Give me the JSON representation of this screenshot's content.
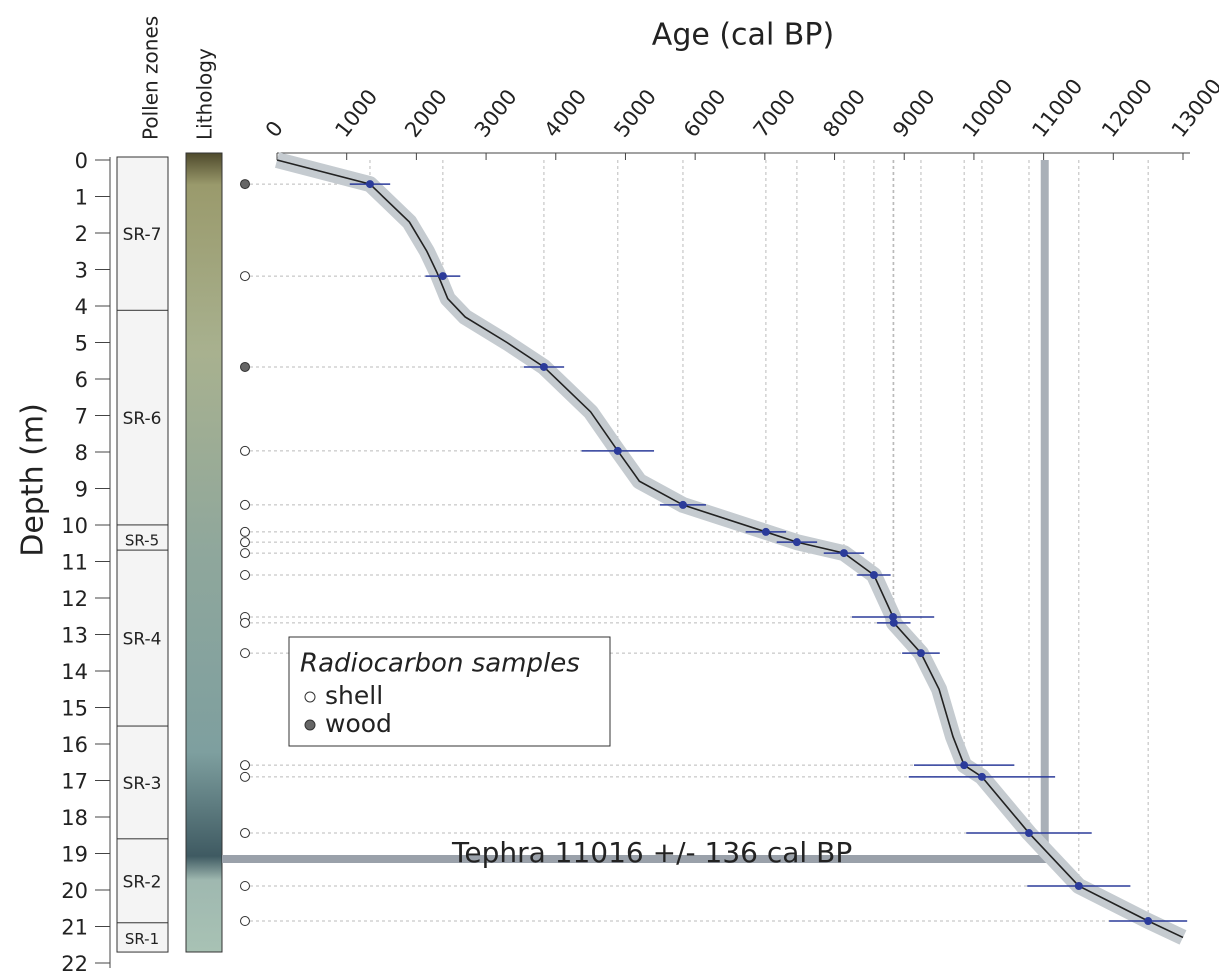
{
  "chart_data": {
    "type": "age-depth",
    "title": "Age (cal BP)",
    "y_label": "Depth (m)",
    "zones_label": "Pollen zones",
    "lithology_label": "Lithology",
    "xlim": [
      0,
      13000
    ],
    "xticks": [
      0,
      1000,
      2000,
      3000,
      4000,
      5000,
      6000,
      7000,
      8000,
      9000,
      10000,
      11000,
      12000,
      13000
    ],
    "ylim": [
      0,
      22
    ],
    "yticks": [
      0,
      1,
      2,
      3,
      4,
      5,
      6,
      7,
      8,
      9,
      10,
      11,
      12,
      13,
      14,
      15,
      16,
      17,
      18,
      19,
      20,
      21,
      22
    ],
    "zones": [
      {
        "name": "SR-7",
        "top": 0,
        "bottom": 4.2
      },
      {
        "name": "SR-6",
        "top": 4.2,
        "bottom": 10.08
      },
      {
        "name": "SR-5",
        "top": 10.08,
        "bottom": 10.77
      },
      {
        "name": "SR-4",
        "top": 10.77,
        "bottom": 15.59
      },
      {
        "name": "SR-3",
        "top": 15.59,
        "bottom": 18.68
      },
      {
        "name": "SR-2",
        "top": 18.68,
        "bottom": 20.98
      },
      {
        "name": "SR-1",
        "top": 20.98,
        "bottom": 21.7
      }
    ],
    "samples": {
      "age": [
        1334,
        2380,
        3830,
        4890,
        5825,
        7015,
        7460,
        8135,
        8565,
        8840,
        8850,
        9240,
        9860,
        10115,
        10790,
        11505,
        12500
      ],
      "depth": [
        0.66,
        3.18,
        5.67,
        7.97,
        9.45,
        10.19,
        10.47,
        10.77,
        11.37,
        12.52,
        12.68,
        13.51,
        16.58,
        16.9,
        18.44,
        19.89,
        20.85
      ],
      "error": [
        290,
        250,
        290,
        520,
        330,
        290,
        290,
        290,
        240,
        590,
        240,
        270,
        720,
        1050,
        900,
        740,
        560
      ],
      "material": [
        "wood",
        "shell",
        "wood",
        "shell",
        "shell",
        "shell",
        "shell",
        "shell",
        "shell",
        "shell",
        "shell",
        "shell",
        "shell",
        "shell",
        "shell",
        "shell",
        "shell"
      ]
    },
    "model": {
      "age": [
        0,
        1334,
        1900,
        2150,
        2300,
        2450,
        2700,
        3300,
        3830,
        4500,
        4890,
        5200,
        5825,
        7015,
        7460,
        8135,
        8565,
        8840,
        8850,
        9240,
        9500,
        9700,
        9860,
        10115,
        10790,
        11505,
        12500,
        13000
      ],
      "depth": [
        0,
        0.66,
        1.7,
        2.5,
        3.1,
        3.8,
        4.3,
        5.0,
        5.67,
        6.9,
        7.97,
        8.8,
        9.45,
        10.19,
        10.47,
        10.77,
        11.37,
        12.52,
        12.68,
        13.51,
        14.5,
        15.8,
        16.58,
        16.9,
        18.44,
        19.89,
        20.85,
        21.3
      ]
    },
    "tephra": {
      "label": "Tephra  11016 +/- 136 cal BP",
      "age": 11016,
      "depth": 19.15
    },
    "legend": {
      "title": "Radiocarbon samples",
      "entries": [
        {
          "name": "shell",
          "fill": "#ffffff"
        },
        {
          "name": "wood",
          "fill": "#666666"
        }
      ]
    },
    "point_color": "#2b3b9a"
  }
}
